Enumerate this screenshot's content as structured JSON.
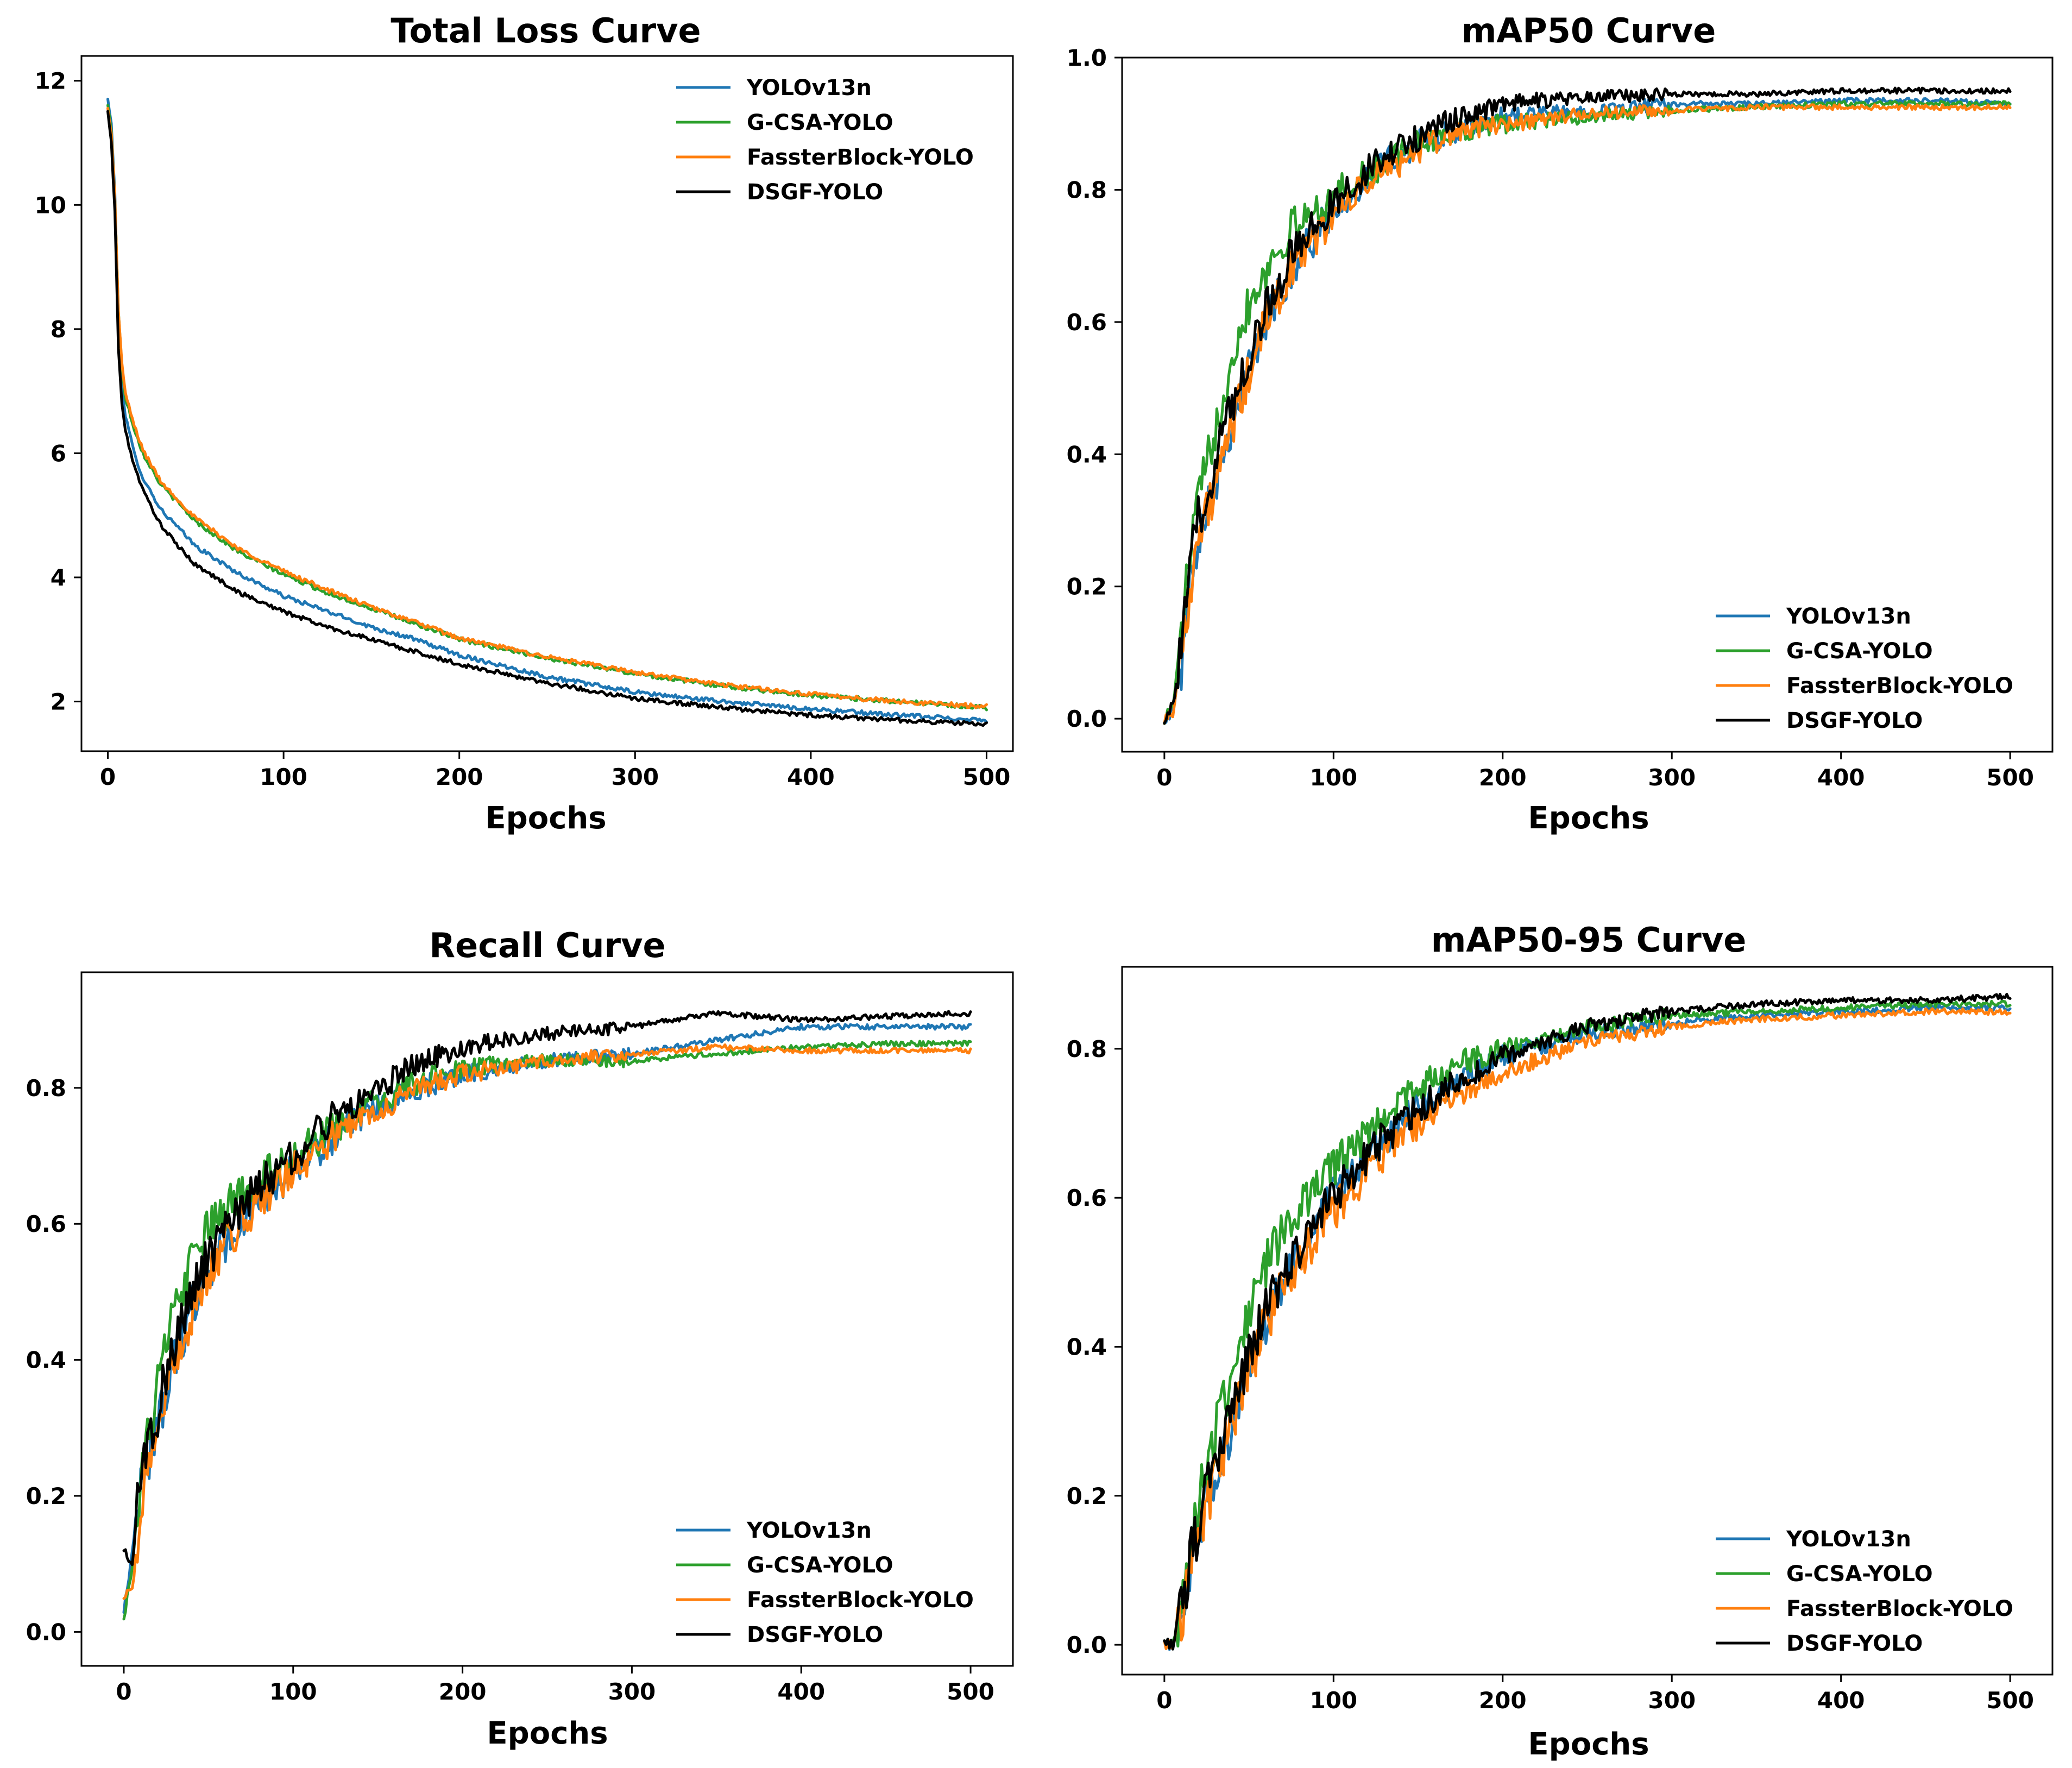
{
  "chart_data": [
    {
      "type": "line",
      "title": "Total Loss Curve",
      "xlabel": "Epochs",
      "ylabel": "",
      "xlim": [
        -15,
        515
      ],
      "ylim": [
        1.2,
        12.4
      ],
      "xticks": [
        "0",
        "100",
        "200",
        "300",
        "400",
        "500"
      ],
      "yticks": [
        "2",
        "4",
        "6",
        "8",
        "10",
        "12"
      ],
      "legend_position": "top-right",
      "epochs": [
        0,
        2,
        4,
        6,
        8,
        10,
        15,
        20,
        30,
        40,
        50,
        75,
        100,
        125,
        150,
        175,
        200,
        250,
        300,
        350,
        400,
        450,
        500
      ],
      "series": [
        {
          "name": "YOLOv13n",
          "color": "#1f77b4",
          "values": [
            11.7,
            11.3,
            10.2,
            8.0,
            7.1,
            6.6,
            6.0,
            5.6,
            5.1,
            4.8,
            4.5,
            4.05,
            3.7,
            3.45,
            3.2,
            3.0,
            2.75,
            2.4,
            2.15,
            2.0,
            1.88,
            1.78,
            1.7
          ]
        },
        {
          "name": "G-CSA-YOLO",
          "color": "#2ca02c",
          "values": [
            11.6,
            11.2,
            10.1,
            8.3,
            7.4,
            6.9,
            6.4,
            6.0,
            5.5,
            5.2,
            4.9,
            4.4,
            4.05,
            3.75,
            3.5,
            3.25,
            3.0,
            2.7,
            2.45,
            2.25,
            2.1,
            2.0,
            1.9
          ]
        },
        {
          "name": "FassterBlock-YOLO",
          "color": "#ff7f0e",
          "values": [
            11.55,
            11.15,
            10.1,
            8.3,
            7.45,
            6.95,
            6.45,
            6.05,
            5.55,
            5.25,
            4.95,
            4.45,
            4.1,
            3.8,
            3.52,
            3.28,
            3.02,
            2.72,
            2.47,
            2.27,
            2.12,
            2.0,
            1.92
          ]
        },
        {
          "name": "DSGF-YOLO",
          "color": "#000000",
          "values": [
            11.5,
            11.0,
            9.9,
            7.7,
            6.8,
            6.35,
            5.8,
            5.4,
            4.85,
            4.5,
            4.2,
            3.75,
            3.45,
            3.2,
            3.0,
            2.8,
            2.6,
            2.3,
            2.05,
            1.9,
            1.78,
            1.7,
            1.63
          ]
        }
      ]
    },
    {
      "type": "line",
      "title": "mAP50 Curve",
      "xlabel": "Epochs",
      "ylabel": "",
      "xlim": [
        -25,
        525
      ],
      "ylim": [
        -0.05,
        1.0
      ],
      "xticks": [
        "0",
        "100",
        "200",
        "300",
        "400",
        "500"
      ],
      "yticks": [
        "0.0",
        "0.2",
        "0.4",
        "0.6",
        "0.8",
        "1.0"
      ],
      "legend_position": "bottom-right",
      "epochs": [
        0,
        5,
        10,
        15,
        20,
        25,
        30,
        40,
        50,
        60,
        75,
        100,
        125,
        150,
        175,
        200,
        250,
        300,
        350,
        400,
        450,
        500
      ],
      "series": [
        {
          "name": "YOLOv13n",
          "color": "#1f77b4",
          "values": [
            0.0,
            0.01,
            0.08,
            0.2,
            0.28,
            0.32,
            0.36,
            0.45,
            0.53,
            0.6,
            0.68,
            0.77,
            0.83,
            0.87,
            0.89,
            0.91,
            0.92,
            0.93,
            0.93,
            0.935,
            0.935,
            0.93
          ]
        },
        {
          "name": "G-CSA-YOLO",
          "color": "#2ca02c",
          "values": [
            0.0,
            0.02,
            0.12,
            0.25,
            0.33,
            0.38,
            0.44,
            0.55,
            0.63,
            0.68,
            0.74,
            0.79,
            0.83,
            0.87,
            0.89,
            0.9,
            0.91,
            0.92,
            0.925,
            0.93,
            0.93,
            0.93
          ]
        },
        {
          "name": "FassterBlock-YOLO",
          "color": "#ff7f0e",
          "values": [
            0.0,
            0.01,
            0.09,
            0.2,
            0.27,
            0.31,
            0.35,
            0.44,
            0.52,
            0.6,
            0.68,
            0.76,
            0.82,
            0.86,
            0.89,
            0.9,
            0.915,
            0.92,
            0.925,
            0.925,
            0.925,
            0.925
          ]
        },
        {
          "name": "DSGF-YOLO",
          "color": "#000000",
          "values": [
            0.0,
            0.02,
            0.1,
            0.23,
            0.3,
            0.34,
            0.39,
            0.48,
            0.55,
            0.62,
            0.7,
            0.78,
            0.84,
            0.88,
            0.91,
            0.93,
            0.94,
            0.945,
            0.945,
            0.95,
            0.95,
            0.95
          ]
        }
      ]
    },
    {
      "type": "line",
      "title": "Recall Curve",
      "xlabel": "Epochs",
      "ylabel": "",
      "xlim": [
        -25,
        525
      ],
      "ylim": [
        -0.05,
        0.97
      ],
      "xticks": [
        "0",
        "100",
        "200",
        "300",
        "400",
        "500"
      ],
      "yticks": [
        "0.0",
        "0.2",
        "0.4",
        "0.6",
        "0.8"
      ],
      "legend_position": "bottom-right",
      "epochs": [
        0,
        5,
        10,
        15,
        20,
        25,
        30,
        40,
        50,
        60,
        75,
        100,
        125,
        150,
        175,
        200,
        250,
        300,
        350,
        400,
        450,
        500
      ],
      "series": [
        {
          "name": "YOLOv13n",
          "color": "#1f77b4",
          "values": [
            0.03,
            0.12,
            0.22,
            0.26,
            0.3,
            0.36,
            0.4,
            0.48,
            0.53,
            0.57,
            0.62,
            0.68,
            0.73,
            0.77,
            0.8,
            0.82,
            0.84,
            0.85,
            0.87,
            0.89,
            0.89,
            0.89
          ]
        },
        {
          "name": "G-CSA-YOLO",
          "color": "#2ca02c",
          "values": [
            0.02,
            0.1,
            0.22,
            0.3,
            0.36,
            0.42,
            0.47,
            0.54,
            0.59,
            0.62,
            0.66,
            0.7,
            0.74,
            0.78,
            0.81,
            0.83,
            0.84,
            0.84,
            0.85,
            0.86,
            0.865,
            0.865
          ]
        },
        {
          "name": "FassterBlock-YOLO",
          "color": "#ff7f0e",
          "values": [
            0.05,
            0.06,
            0.18,
            0.26,
            0.3,
            0.35,
            0.39,
            0.47,
            0.53,
            0.57,
            0.62,
            0.68,
            0.73,
            0.77,
            0.8,
            0.82,
            0.84,
            0.85,
            0.86,
            0.855,
            0.855,
            0.855
          ]
        },
        {
          "name": "DSGF-YOLO",
          "color": "#000000",
          "values": [
            0.12,
            0.1,
            0.24,
            0.28,
            0.32,
            0.38,
            0.42,
            0.5,
            0.55,
            0.59,
            0.64,
            0.7,
            0.76,
            0.8,
            0.84,
            0.86,
            0.88,
            0.89,
            0.91,
            0.9,
            0.905,
            0.91
          ]
        }
      ]
    },
    {
      "type": "line",
      "title": "mAP50-95 Curve",
      "xlabel": "Epochs",
      "ylabel": "",
      "xlim": [
        -25,
        525
      ],
      "ylim": [
        -0.04,
        0.91
      ],
      "xticks": [
        "0",
        "100",
        "200",
        "300",
        "400",
        "500"
      ],
      "yticks": [
        "0.0",
        "0.2",
        "0.4",
        "0.6",
        "0.8"
      ],
      "legend_position": "bottom-right",
      "epochs": [
        0,
        5,
        10,
        15,
        20,
        25,
        30,
        40,
        50,
        60,
        75,
        100,
        125,
        150,
        175,
        200,
        250,
        300,
        350,
        400,
        450,
        500
      ],
      "series": [
        {
          "name": "YOLOv13n",
          "color": "#1f77b4",
          "values": [
            0.0,
            0.0,
            0.04,
            0.1,
            0.15,
            0.19,
            0.22,
            0.3,
            0.37,
            0.43,
            0.51,
            0.6,
            0.67,
            0.72,
            0.76,
            0.79,
            0.82,
            0.835,
            0.845,
            0.85,
            0.855,
            0.855
          ]
        },
        {
          "name": "G-CSA-YOLO",
          "color": "#2ca02c",
          "values": [
            0.0,
            0.0,
            0.06,
            0.13,
            0.19,
            0.24,
            0.28,
            0.37,
            0.45,
            0.51,
            0.57,
            0.64,
            0.7,
            0.75,
            0.78,
            0.8,
            0.83,
            0.845,
            0.85,
            0.855,
            0.86,
            0.86
          ]
        },
        {
          "name": "FassterBlock-YOLO",
          "color": "#ff7f0e",
          "values": [
            0.0,
            0.0,
            0.04,
            0.1,
            0.15,
            0.19,
            0.22,
            0.3,
            0.37,
            0.43,
            0.5,
            0.58,
            0.65,
            0.7,
            0.74,
            0.77,
            0.81,
            0.83,
            0.84,
            0.845,
            0.85,
            0.85
          ]
        },
        {
          "name": "DSGF-YOLO",
          "color": "#000000",
          "values": [
            0.0,
            0.0,
            0.05,
            0.11,
            0.16,
            0.2,
            0.24,
            0.32,
            0.39,
            0.45,
            0.52,
            0.6,
            0.67,
            0.72,
            0.76,
            0.79,
            0.83,
            0.85,
            0.86,
            0.865,
            0.865,
            0.87
          ]
        }
      ]
    }
  ]
}
